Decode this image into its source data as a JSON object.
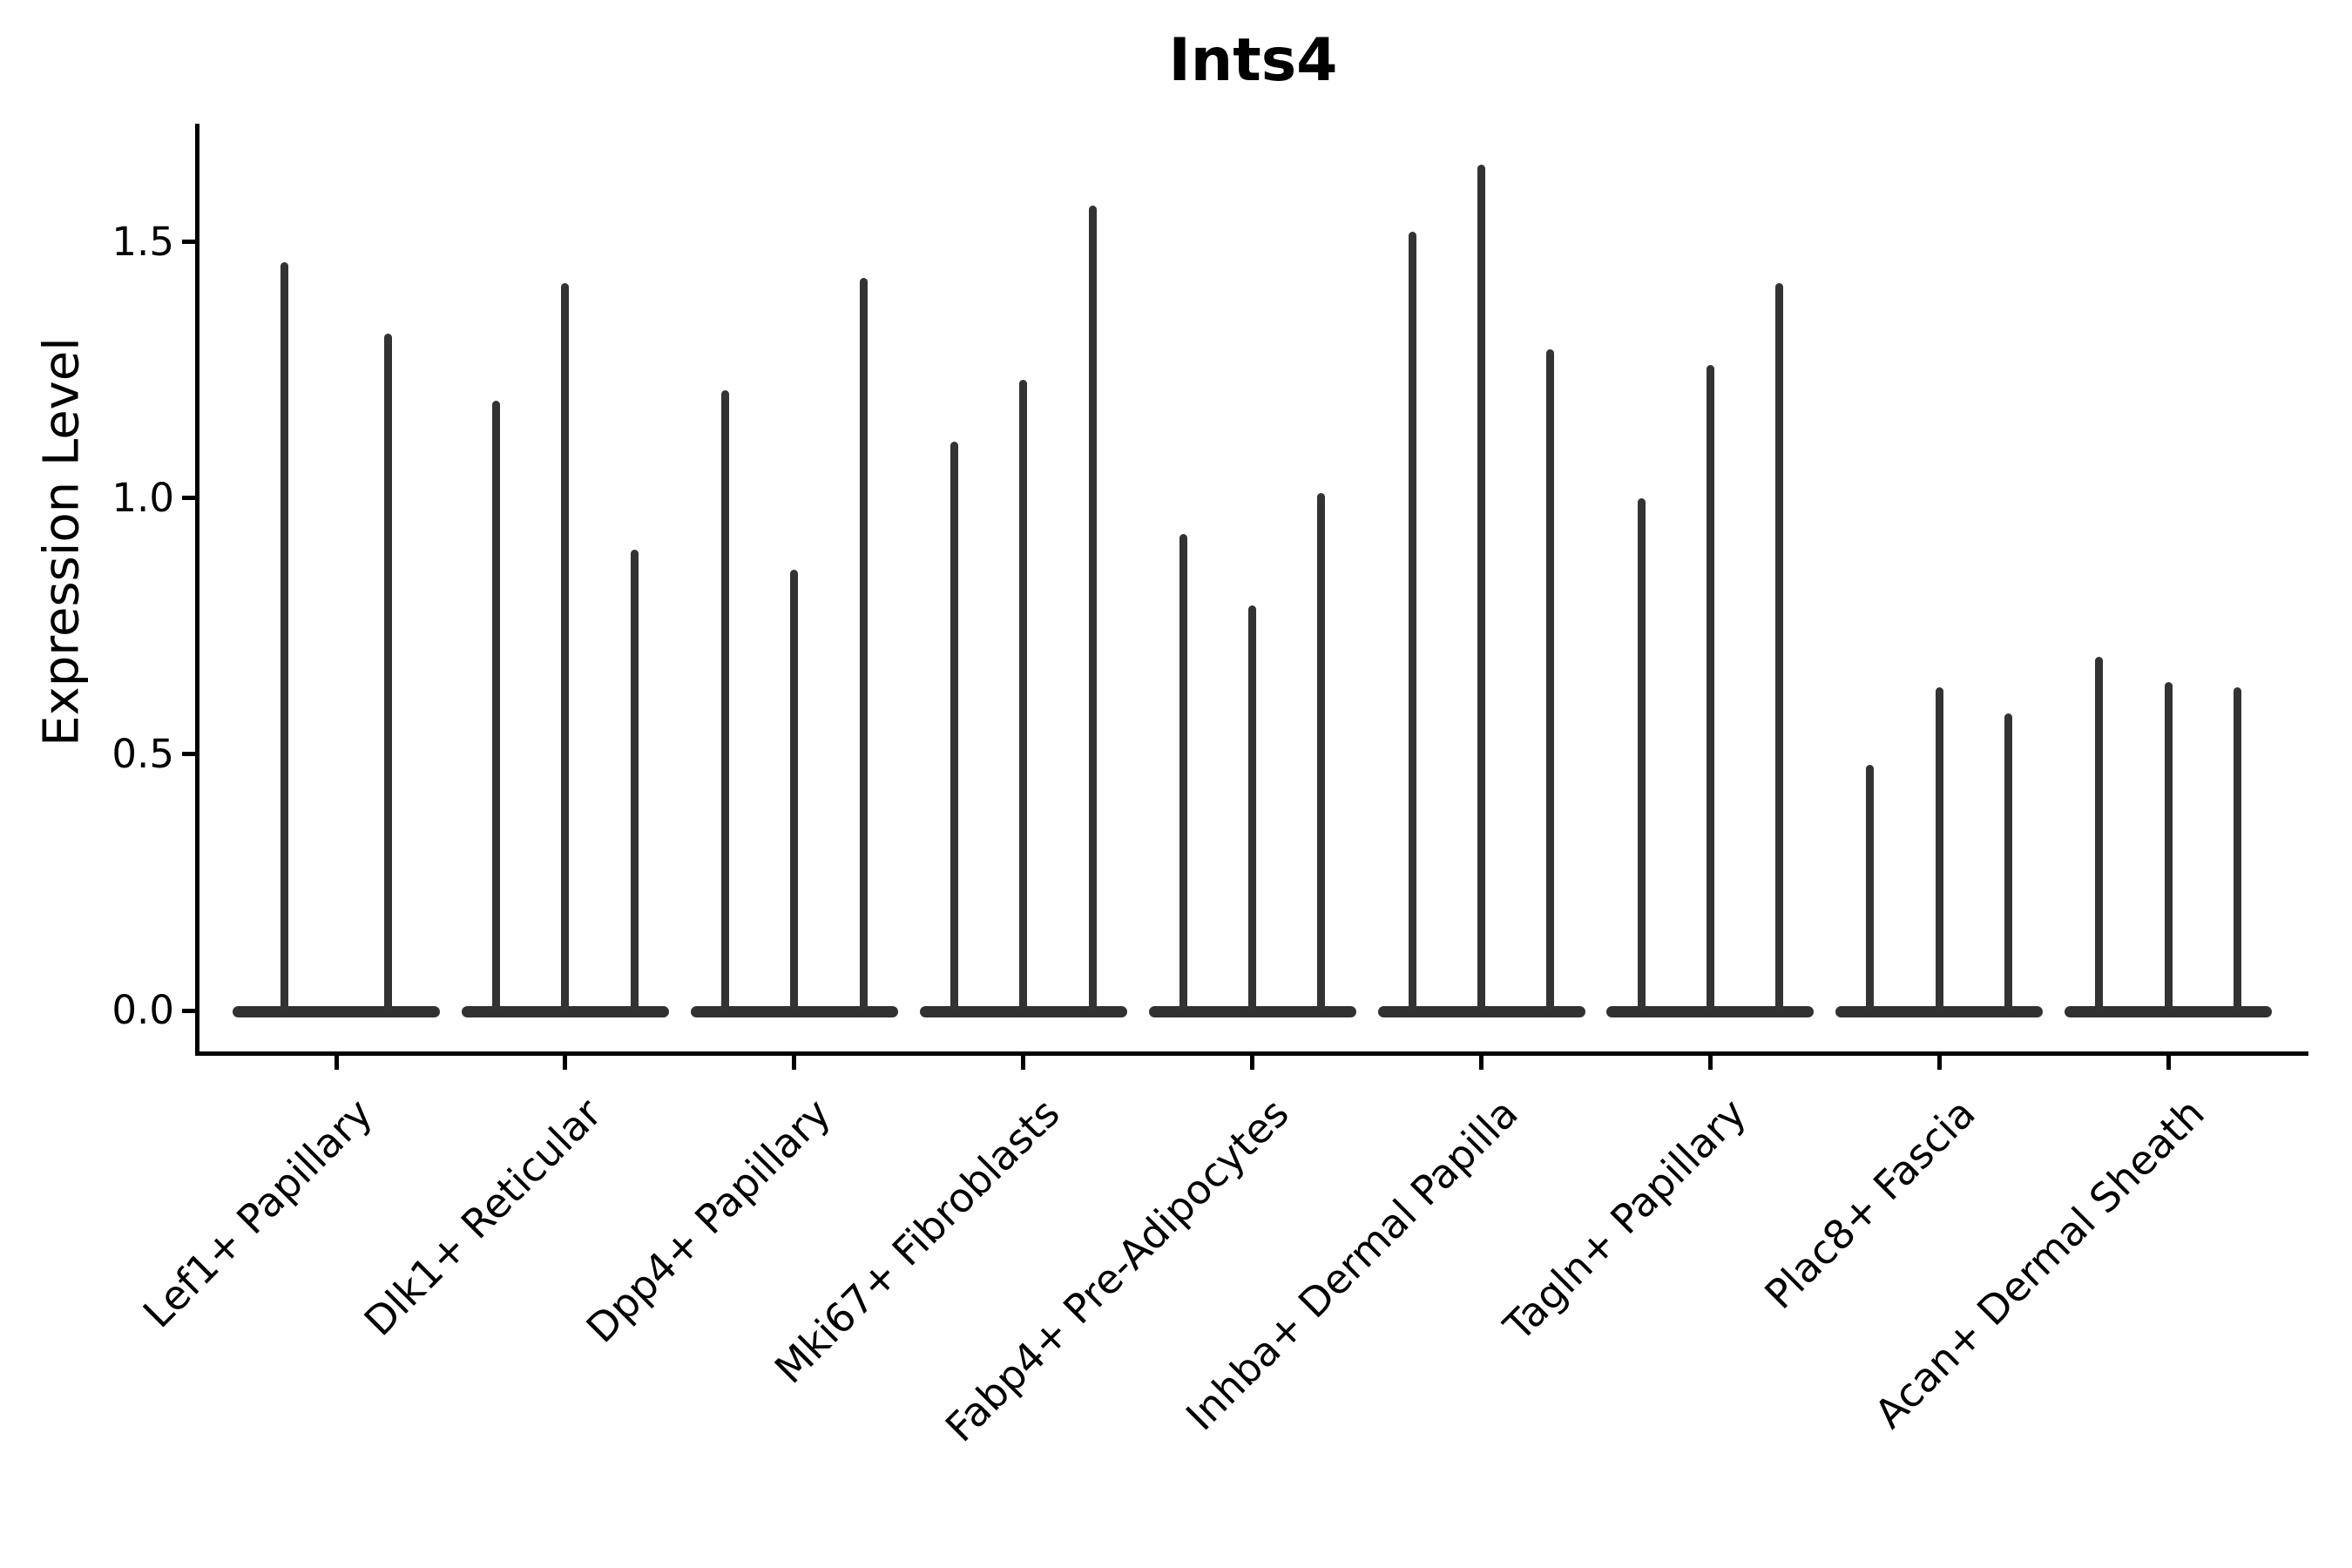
{
  "title": "Ints4",
  "y_axis": {
    "label": "Expression Level",
    "ticks": [
      {
        "label": "0.0",
        "value": 0.0
      },
      {
        "label": "0.5",
        "value": 0.5
      },
      {
        "label": "1.0",
        "value": 1.0
      },
      {
        "label": "1.5",
        "value": 1.5
      }
    ]
  },
  "colors": {
    "violin_fill": "#333333",
    "axis": "#000000",
    "text": "#000000",
    "background": "#ffffff"
  },
  "chart_data": {
    "type": "violin",
    "title": "Ints4",
    "xlabel": "",
    "ylabel": "Expression Level",
    "ylim": [
      0,
      1.73
    ],
    "ytick_values": [
      0.0,
      0.5,
      1.0,
      1.5
    ],
    "grid": false,
    "legend": "none",
    "style": "each violin is collapsed to a flat dark bar at expression 0 with a single thin vertical spike reaching its maximum value; all violins monochrome dark gray; x labels rotated 45 degrees",
    "categories": [
      "Lef1+ Papillary",
      "Dlk1+ Reticular",
      "Dpp4+ Papillary",
      "Mki67+ Fibroblasts",
      "Fabp4+ Pre-Adipocytes",
      "Inhba+ Dermal Papilla",
      "Tagln+ Papillary",
      "Plac8+ Fascia",
      "Acan+ Dermal Sheath"
    ],
    "groups": [
      {
        "label": "Lef1+ Papillary",
        "spike_values": [
          1.46,
          1.32
        ]
      },
      {
        "label": "Dlk1+ Reticular",
        "spike_values": [
          1.19,
          1.42,
          0.9
        ]
      },
      {
        "label": "Dpp4+ Papillary",
        "spike_values": [
          1.21,
          0.86,
          1.43
        ]
      },
      {
        "label": "Mki67+ Fibroblasts",
        "spike_values": [
          1.11,
          1.23,
          1.57
        ]
      },
      {
        "label": "Fabp4+ Pre-Adipocytes",
        "spike_values": [
          0.93,
          0.79,
          1.01
        ]
      },
      {
        "label": "Inhba+ Dermal Papilla",
        "spike_values": [
          1.52,
          1.65,
          1.29
        ]
      },
      {
        "label": "Tagln+ Papillary",
        "spike_values": [
          1.0,
          1.26,
          1.42
        ]
      },
      {
        "label": "Plac8+ Fascia",
        "spike_values": [
          0.48,
          0.63,
          0.58
        ]
      },
      {
        "label": "Acan+ Dermal Sheath",
        "spike_values": [
          0.69,
          0.64,
          0.63
        ]
      }
    ]
  }
}
